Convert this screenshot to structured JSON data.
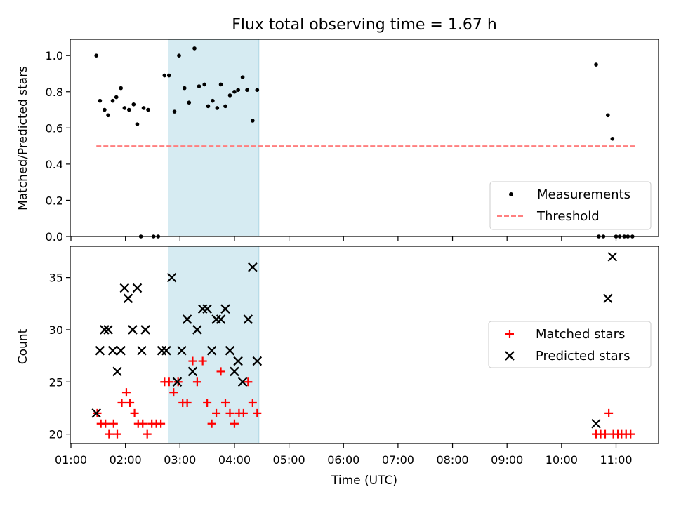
{
  "title": "Flux total observing time = 1.67 h",
  "xlabel": "Time (UTC)",
  "x_ticks": [
    "01:00",
    "02:00",
    "03:00",
    "04:00",
    "05:00",
    "06:00",
    "07:00",
    "08:00",
    "09:00",
    "10:00",
    "11:00"
  ],
  "highlight_color": "#add8e6",
  "chart_data": [
    {
      "type": "scatter",
      "ylabel": "Matched/Predicted stars",
      "ylim": [
        0,
        1.09
      ],
      "y_ticks": [
        "0.0",
        "0.2",
        "0.4",
        "0.6",
        "0.8",
        "1.0"
      ],
      "highlight_span": [
        "02:47",
        "04:27"
      ],
      "legend": {
        "placement": "lower-right",
        "entries": [
          "Measurements",
          "Threshold"
        ]
      },
      "series": [
        {
          "name": "Measurements",
          "marker": "dot",
          "color": "#000000",
          "points": [
            [
              "01:28",
              1.0
            ],
            [
              "01:32",
              0.75
            ],
            [
              "01:37",
              0.7
            ],
            [
              "01:41",
              0.67
            ],
            [
              "01:46",
              0.75
            ],
            [
              "01:50",
              0.77
            ],
            [
              "01:55",
              0.82
            ],
            [
              "01:59",
              0.71
            ],
            [
              "02:04",
              0.7
            ],
            [
              "02:09",
              0.73
            ],
            [
              "02:13",
              0.62
            ],
            [
              "02:17",
              0.0
            ],
            [
              "02:20",
              0.71
            ],
            [
              "02:25",
              0.7
            ],
            [
              "02:31",
              0.0
            ],
            [
              "02:36",
              0.0
            ],
            [
              "02:43",
              0.89
            ],
            [
              "02:48",
              0.89
            ],
            [
              "02:54",
              0.69
            ],
            [
              "02:59",
              1.0
            ],
            [
              "03:05",
              0.82
            ],
            [
              "03:10",
              0.74
            ],
            [
              "03:16",
              1.04
            ],
            [
              "03:21",
              0.83
            ],
            [
              "03:27",
              0.84
            ],
            [
              "03:31",
              0.72
            ],
            [
              "03:36",
              0.75
            ],
            [
              "03:41",
              0.71
            ],
            [
              "03:45",
              0.84
            ],
            [
              "03:50",
              0.72
            ],
            [
              "03:55",
              0.78
            ],
            [
              "04:00",
              0.8
            ],
            [
              "04:04",
              0.81
            ],
            [
              "04:09",
              0.88
            ],
            [
              "04:14",
              0.81
            ],
            [
              "04:20",
              0.64
            ],
            [
              "04:25",
              0.81
            ],
            [
              "10:38",
              0.95
            ],
            [
              "10:41",
              0.0
            ],
            [
              "10:46",
              0.0
            ],
            [
              "10:51",
              0.67
            ],
            [
              "10:56",
              0.54
            ],
            [
              "11:00",
              0.0
            ],
            [
              "11:04",
              0.0
            ],
            [
              "11:09",
              0.0
            ],
            [
              "11:13",
              0.0
            ],
            [
              "11:18",
              0.0
            ]
          ]
        },
        {
          "name": "Threshold",
          "style": "dashed",
          "color": "#ff7f7f",
          "points": [
            [
              "01:28",
              0.5
            ],
            [
              "11:23",
              0.5
            ]
          ]
        }
      ]
    },
    {
      "type": "scatter",
      "ylabel": "Count",
      "ylim": [
        19.1,
        38.0
      ],
      "y_ticks": [
        "20",
        "25",
        "30",
        "35"
      ],
      "highlight_span": [
        "02:47",
        "04:27"
      ],
      "legend": {
        "placement": "center-right",
        "entries": [
          "Matched stars",
          "Predicted stars"
        ]
      },
      "series": [
        {
          "name": "Matched stars",
          "marker": "plus",
          "color": "#ff0000",
          "points": [
            [
              "01:29",
              22
            ],
            [
              "01:33",
              21
            ],
            [
              "01:38",
              21
            ],
            [
              "01:42",
              20
            ],
            [
              "01:47",
              21
            ],
            [
              "01:51",
              20
            ],
            [
              "01:56",
              23
            ],
            [
              "02:01",
              24
            ],
            [
              "02:05",
              23
            ],
            [
              "02:10",
              22
            ],
            [
              "02:14",
              21
            ],
            [
              "02:19",
              21
            ],
            [
              "02:24",
              20
            ],
            [
              "02:29",
              21
            ],
            [
              "02:34",
              21
            ],
            [
              "02:39",
              21
            ],
            [
              "02:43",
              25
            ],
            [
              "02:48",
              25
            ],
            [
              "02:53",
              24
            ],
            [
              "02:58",
              25
            ],
            [
              "03:03",
              23
            ],
            [
              "03:08",
              23
            ],
            [
              "03:14",
              27
            ],
            [
              "03:19",
              25
            ],
            [
              "03:25",
              27
            ],
            [
              "03:30",
              23
            ],
            [
              "03:35",
              21
            ],
            [
              "03:40",
              22
            ],
            [
              "03:45",
              26
            ],
            [
              "03:50",
              23
            ],
            [
              "03:55",
              22
            ],
            [
              "04:00",
              21
            ],
            [
              "04:05",
              22
            ],
            [
              "04:10",
              22
            ],
            [
              "04:15",
              25
            ],
            [
              "04:20",
              23
            ],
            [
              "04:25",
              22
            ],
            [
              "10:38",
              20
            ],
            [
              "10:43",
              20
            ],
            [
              "10:48",
              20
            ],
            [
              "10:52",
              22
            ],
            [
              "10:57",
              20
            ],
            [
              "11:02",
              20
            ],
            [
              "11:06",
              20
            ],
            [
              "11:11",
              20
            ],
            [
              "11:16",
              20
            ]
          ]
        },
        {
          "name": "Predicted stars",
          "marker": "x",
          "color": "#000000",
          "points": [
            [
              "01:28",
              22
            ],
            [
              "01:32",
              28
            ],
            [
              "01:37",
              30
            ],
            [
              "01:41",
              30
            ],
            [
              "01:46",
              28
            ],
            [
              "01:51",
              26
            ],
            [
              "01:55",
              28
            ],
            [
              "01:59",
              34
            ],
            [
              "02:03",
              33
            ],
            [
              "02:08",
              30
            ],
            [
              "02:13",
              34
            ],
            [
              "02:18",
              28
            ],
            [
              "02:22",
              30
            ],
            [
              "02:40",
              28
            ],
            [
              "02:45",
              28
            ],
            [
              "02:51",
              35
            ],
            [
              "02:57",
              25
            ],
            [
              "03:02",
              28
            ],
            [
              "03:08",
              31
            ],
            [
              "03:14",
              26
            ],
            [
              "03:19",
              30
            ],
            [
              "03:25",
              32
            ],
            [
              "03:30",
              32
            ],
            [
              "03:35",
              28
            ],
            [
              "03:40",
              31
            ],
            [
              "03:45",
              31
            ],
            [
              "03:50",
              32
            ],
            [
              "03:55",
              28
            ],
            [
              "04:00",
              26
            ],
            [
              "04:04",
              27
            ],
            [
              "04:09",
              25
            ],
            [
              "04:15",
              31
            ],
            [
              "04:20",
              36
            ],
            [
              "04:25",
              27
            ],
            [
              "10:38",
              21
            ],
            [
              "10:51",
              33
            ],
            [
              "10:56",
              37
            ]
          ]
        }
      ]
    }
  ]
}
